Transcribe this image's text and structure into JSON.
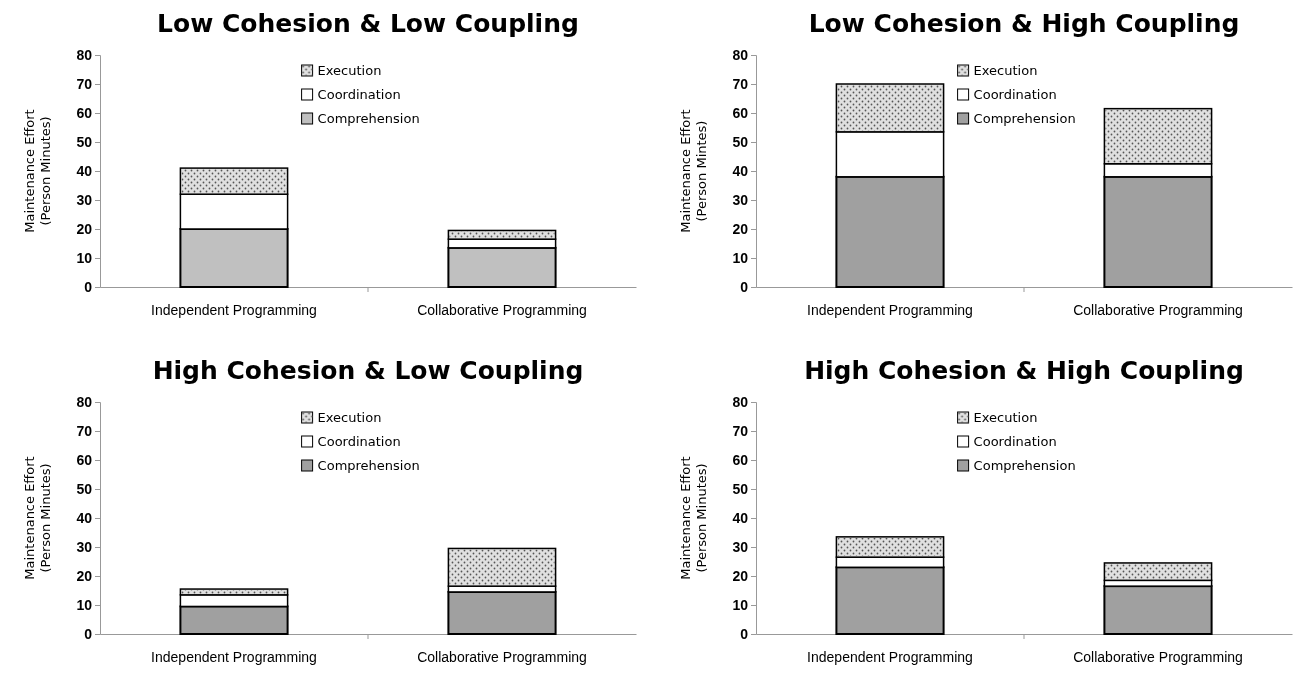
{
  "chart_data": [
    {
      "type": "bar",
      "title": "Low Cohesion & Low Coupling",
      "ylabel": "Maintenance Effort\n(Person Minutes)",
      "categories": [
        "Independent Programming",
        "Collaborative Programming"
      ],
      "stacked": true,
      "legend": "top",
      "ylim": [
        0,
        80
      ],
      "yticks": [
        0,
        10,
        20,
        30,
        40,
        50,
        60,
        70,
        80
      ],
      "series": [
        {
          "name": "Comprehension",
          "color": "#c0c0c0",
          "values": [
            20,
            13.5
          ]
        },
        {
          "name": "Coordination",
          "color": "#ffffff",
          "values": [
            12,
            3
          ]
        },
        {
          "name": "Execution",
          "color": "#e0e0e0",
          "values": [
            9,
            3
          ]
        }
      ]
    },
    {
      "type": "bar",
      "title": "Low Cohesion & High Coupling",
      "ylabel": "Maintenance Effort\n(Person Mintes)",
      "categories": [
        "Independent Programming",
        "Collaborative Programming"
      ],
      "stacked": true,
      "legend": "top",
      "ylim": [
        0,
        80
      ],
      "yticks": [
        0,
        10,
        20,
        30,
        40,
        50,
        60,
        70,
        80
      ],
      "series": [
        {
          "name": "Comprehension",
          "color": "#a0a0a0",
          "values": [
            38,
            38
          ]
        },
        {
          "name": "Coordination",
          "color": "#ffffff",
          "values": [
            15.5,
            4.5
          ]
        },
        {
          "name": "Execution",
          "color": "#e0e0e0",
          "values": [
            16.5,
            19
          ]
        }
      ]
    },
    {
      "type": "bar",
      "title": "High Cohesion & Low Coupling",
      "ylabel": "Maintenance Effort\n(Person Minutes)",
      "categories": [
        "Independent Programming",
        "Collaborative Programming"
      ],
      "stacked": true,
      "legend": "top",
      "ylim": [
        0,
        80
      ],
      "yticks": [
        0,
        10,
        20,
        30,
        40,
        50,
        60,
        70,
        80
      ],
      "series": [
        {
          "name": "Comprehension",
          "color": "#a0a0a0",
          "values": [
            9.5,
            14.5
          ]
        },
        {
          "name": "Coordination",
          "color": "#ffffff",
          "values": [
            4,
            2
          ]
        },
        {
          "name": "Execution",
          "color": "#e0e0e0",
          "values": [
            2,
            13
          ]
        }
      ]
    },
    {
      "type": "bar",
      "title": "High Cohesion & High Coupling",
      "ylabel": "Maintenance Effort\n(Person Minutes)",
      "categories": [
        "Independent Programming",
        "Collaborative Programming"
      ],
      "stacked": true,
      "legend": "top",
      "ylim": [
        0,
        80
      ],
      "yticks": [
        0,
        10,
        20,
        30,
        40,
        50,
        60,
        70,
        80
      ],
      "series": [
        {
          "name": "Comprehension",
          "color": "#a0a0a0",
          "values": [
            23,
            16.5
          ]
        },
        {
          "name": "Coordination",
          "color": "#ffffff",
          "values": [
            3.5,
            2
          ]
        },
        {
          "name": "Execution",
          "color": "#e0e0e0",
          "values": [
            7,
            6
          ]
        }
      ]
    }
  ]
}
